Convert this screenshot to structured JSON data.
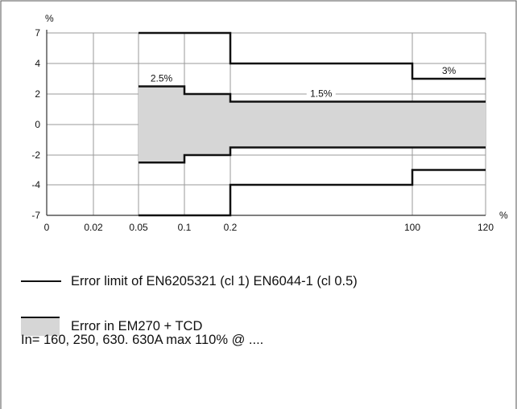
{
  "chart_data": {
    "type": "area",
    "title": "",
    "xlabel": "",
    "ylabel": "",
    "x_unit": "%",
    "y_unit": "%",
    "x_ticks": [
      "0",
      "0.02",
      "0.05",
      "0.1",
      "0.2",
      "100",
      "120"
    ],
    "y_ticks": [
      "7",
      "4",
      "2",
      "0",
      "-2",
      "-4",
      "-7"
    ],
    "ylim": [
      -7,
      7
    ],
    "xlim": [
      0,
      120
    ],
    "grid": true,
    "series": [
      {
        "name": "Error limit of EN6205321 (cl 1) EN6044-1 (cl 0.5)",
        "style": "line",
        "upper": [
          {
            "x": 0.05,
            "y": 7
          },
          {
            "x": 0.2,
            "y": 7
          },
          {
            "x": 0.2,
            "y": 4
          },
          {
            "x": 100,
            "y": 4
          },
          {
            "x": 100,
            "y": 3
          },
          {
            "x": 120,
            "y": 3
          }
        ],
        "lower": [
          {
            "x": 0.05,
            "y": -7
          },
          {
            "x": 0.2,
            "y": -7
          },
          {
            "x": 0.2,
            "y": -4
          },
          {
            "x": 100,
            "y": -4
          },
          {
            "x": 100,
            "y": -3
          },
          {
            "x": 120,
            "y": -3
          }
        ]
      },
      {
        "name": "Error in EM270 + TCD",
        "style": "band",
        "upper": [
          {
            "x": 0.05,
            "y": 2.5
          },
          {
            "x": 0.1,
            "y": 2.5
          },
          {
            "x": 0.1,
            "y": 2
          },
          {
            "x": 0.2,
            "y": 2
          },
          {
            "x": 0.2,
            "y": 1.5
          },
          {
            "x": 120,
            "y": 1.5
          }
        ],
        "lower": [
          {
            "x": 0.05,
            "y": -2.5
          },
          {
            "x": 0.1,
            "y": -2.5
          },
          {
            "x": 0.1,
            "y": -2
          },
          {
            "x": 0.2,
            "y": -2
          },
          {
            "x": 0.2,
            "y": -1.5
          },
          {
            "x": 120,
            "y": -1.5
          }
        ]
      }
    ],
    "annotations": [
      {
        "text": "2.5%",
        "x": 0.075,
        "y": 2.5
      },
      {
        "text": "1.5%",
        "x": 50,
        "y": 1.5
      },
      {
        "text": "3%",
        "x": 110,
        "y": 3
      }
    ]
  },
  "legend": {
    "limit_label": "Error limit of EN6205321 (cl 1) EN6044-1 (cl 0.5)",
    "band_label": "Error in EM270 + TCD"
  },
  "note": "In= 160, 250, 630. 630A max 110% @ ....",
  "colors": {
    "band": "#d6d6d6",
    "line": "#111111",
    "grid": "#9a9a9a",
    "frame": "#555555"
  }
}
